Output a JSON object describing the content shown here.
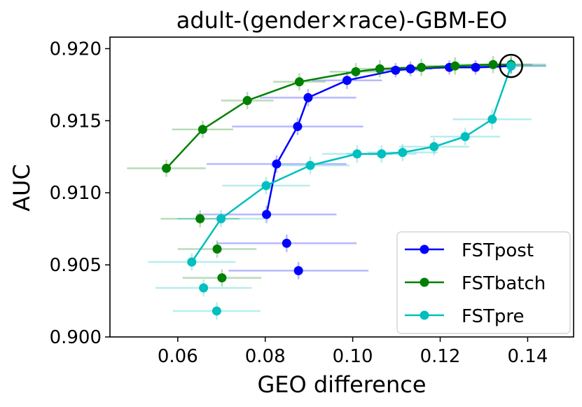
{
  "chart_data": {
    "type": "line",
    "title": "adult-(gender×race)-GBM-EO",
    "xlabel": "GEO difference",
    "ylabel": "AUC",
    "xlim": [
      0.0445,
      0.1505
    ],
    "ylim": [
      0.9,
      0.9208
    ],
    "xticks": [
      "0.06",
      "0.08",
      "0.10",
      "0.12",
      "0.14"
    ],
    "xtick_values": [
      0.06,
      0.08,
      0.1,
      0.12,
      0.14
    ],
    "yticks": [
      "0.900",
      "0.905",
      "0.910",
      "0.915",
      "0.920"
    ],
    "ytick_values": [
      0.9,
      0.905,
      0.91,
      0.915,
      0.92
    ],
    "legend_position": "lower-right",
    "highlight": {
      "x": 0.1362,
      "y": 0.9188,
      "marker": "open-circle"
    },
    "series": [
      {
        "name": "FSTpost",
        "color": "#0000ff",
        "line": [
          {
            "x": 0.0803,
            "y": 0.9085,
            "xerr": 0.016,
            "yerr": 0.0006
          },
          {
            "x": 0.0826,
            "y": 0.912,
            "xerr": 0.016,
            "yerr": 0.0006
          },
          {
            "x": 0.0874,
            "y": 0.9146,
            "xerr": 0.015,
            "yerr": 0.0006
          },
          {
            "x": 0.0898,
            "y": 0.9166,
            "xerr": 0.011,
            "yerr": 0.0006
          },
          {
            "x": 0.0987,
            "y": 0.9178,
            "xerr": 0.008,
            "yerr": 0.0006
          },
          {
            "x": 0.1098,
            "y": 0.9185,
            "xerr": 0.006,
            "yerr": 0.0005
          },
          {
            "x": 0.1132,
            "y": 0.9186,
            "xerr": 0.005,
            "yerr": 0.0005
          },
          {
            "x": 0.1221,
            "y": 0.9187,
            "xerr": 0.006,
            "yerr": 0.0005
          },
          {
            "x": 0.1281,
            "y": 0.9187,
            "xerr": 0.006,
            "yerr": 0.0005
          },
          {
            "x": 0.1362,
            "y": 0.9188,
            "xerr": 0.008,
            "yerr": 0.0005
          }
        ],
        "scatter": [
          {
            "x": 0.0849,
            "y": 0.9065,
            "xerr": 0.016,
            "yerr": 0.0006
          },
          {
            "x": 0.0876,
            "y": 0.9046,
            "xerr": 0.016,
            "yerr": 0.0006
          }
        ]
      },
      {
        "name": "FSTbatch",
        "color": "#008000",
        "line": [
          {
            "x": 0.0574,
            "y": 0.9117,
            "xerr": 0.009,
            "yerr": 0.0006
          },
          {
            "x": 0.0657,
            "y": 0.9144,
            "xerr": 0.007,
            "yerr": 0.0006
          },
          {
            "x": 0.0759,
            "y": 0.9164,
            "xerr": 0.006,
            "yerr": 0.0006
          },
          {
            "x": 0.0878,
            "y": 0.9177,
            "xerr": 0.006,
            "yerr": 0.0006
          },
          {
            "x": 0.1007,
            "y": 0.9184,
            "xerr": 0.006,
            "yerr": 0.0006
          },
          {
            "x": 0.1062,
            "y": 0.9186,
            "xerr": 0.006,
            "yerr": 0.0006
          },
          {
            "x": 0.1157,
            "y": 0.9187,
            "xerr": 0.007,
            "yerr": 0.0006
          },
          {
            "x": 0.1234,
            "y": 0.9188,
            "xerr": 0.008,
            "yerr": 0.0006
          },
          {
            "x": 0.1321,
            "y": 0.9189,
            "xerr": 0.009,
            "yerr": 0.0006
          },
          {
            "x": 0.1362,
            "y": 0.9189,
            "xerr": 0.008,
            "yerr": 0.0006
          }
        ],
        "scatter": [
          {
            "x": 0.0651,
            "y": 0.9082,
            "xerr": 0.009,
            "yerr": 0.0006
          },
          {
            "x": 0.069,
            "y": 0.9061,
            "xerr": 0.009,
            "yerr": 0.0006
          },
          {
            "x": 0.0701,
            "y": 0.9041,
            "xerr": 0.009,
            "yerr": 0.0006
          }
        ]
      },
      {
        "name": "FSTpre",
        "color": "#00bfbf",
        "line": [
          {
            "x": 0.0632,
            "y": 0.9052,
            "xerr": 0.01,
            "yerr": 0.0006
          },
          {
            "x": 0.0699,
            "y": 0.9082,
            "xerr": 0.01,
            "yerr": 0.0006
          },
          {
            "x": 0.0802,
            "y": 0.9105,
            "xerr": 0.01,
            "yerr": 0.0006
          },
          {
            "x": 0.0903,
            "y": 0.9119,
            "xerr": 0.009,
            "yerr": 0.0006
          },
          {
            "x": 0.101,
            "y": 0.9127,
            "xerr": 0.008,
            "yerr": 0.0006
          },
          {
            "x": 0.1066,
            "y": 0.9127,
            "xerr": 0.008,
            "yerr": 0.0006
          },
          {
            "x": 0.1114,
            "y": 0.9128,
            "xerr": 0.008,
            "yerr": 0.0006
          },
          {
            "x": 0.1186,
            "y": 0.9132,
            "xerr": 0.008,
            "yerr": 0.0006
          },
          {
            "x": 0.1257,
            "y": 0.9139,
            "xerr": 0.008,
            "yerr": 0.0006
          },
          {
            "x": 0.1319,
            "y": 0.9151,
            "xerr": 0.009,
            "yerr": 0.0007
          },
          {
            "x": 0.1362,
            "y": 0.9188,
            "xerr": 0.008,
            "yerr": 0.0006
          }
        ],
        "scatter": [
          {
            "x": 0.0659,
            "y": 0.9034,
            "xerr": 0.011,
            "yerr": 0.0006
          },
          {
            "x": 0.0689,
            "y": 0.9018,
            "xerr": 0.01,
            "yerr": 0.0006
          }
        ]
      }
    ]
  }
}
